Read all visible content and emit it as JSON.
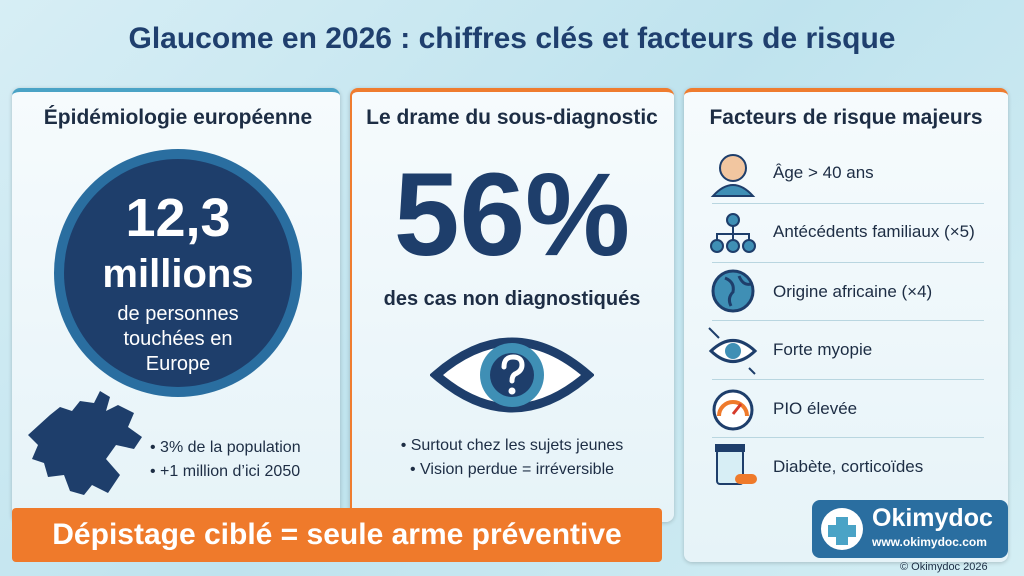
{
  "title": "Glaucome en 2026 : chiffres clés et facteurs de risque",
  "panels": [
    {
      "heading": "Épidémiologie européenne",
      "figure": [
        "12,3",
        "millions"
      ],
      "caption": [
        "de personnes",
        "touchées en",
        "Europe"
      ],
      "bullets": [
        "• 3% de la population",
        "• +1 million d’ici 2050"
      ]
    },
    {
      "heading": "Le drame du sous-diagnostic",
      "figure": [
        "56%"
      ],
      "caption": [
        "des cas non diagnostiqués"
      ],
      "bullets": [
        "• Surtout chez les sujets jeunes",
        "• Vision perdue = irréversible"
      ]
    },
    {
      "heading": "Facteurs de risque majeurs",
      "items": [
        "Âge > 40 ans",
        "Antécédents familiaux (×5)",
        "Origine africaine (×4)",
        "Forte myopie",
        "PIO élevée",
        "Diabète, corticoïdes"
      ]
    }
  ],
  "banner": "Dépistage ciblé = seule arme préventive",
  "logo": {
    "name": "Okimydoc",
    "url": "www.okimydoc.com",
    "copyright": "© Okimydoc 2026"
  }
}
